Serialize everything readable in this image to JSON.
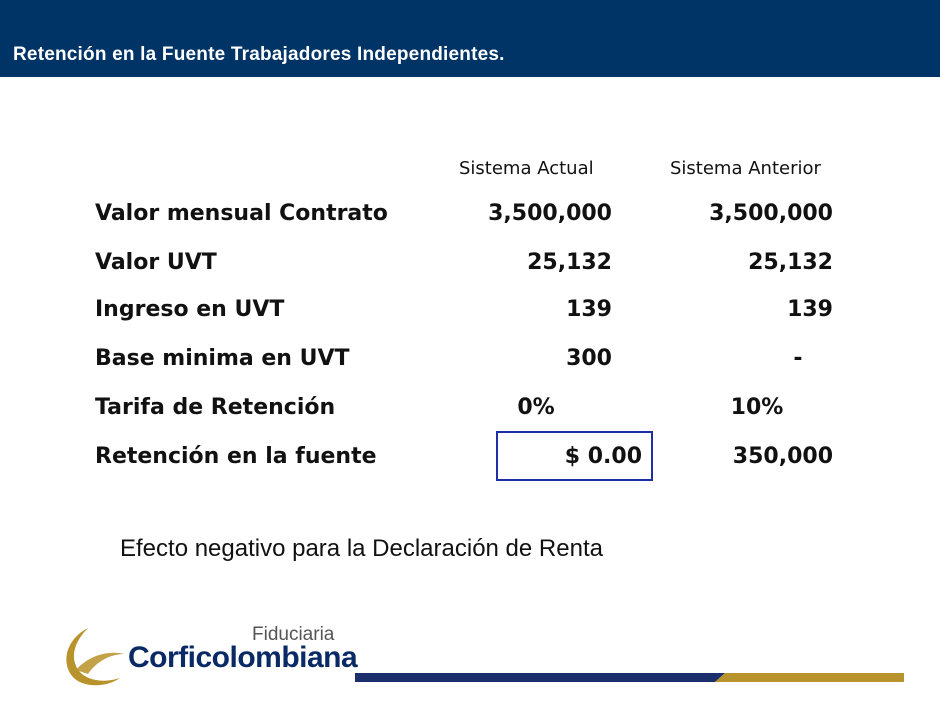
{
  "header": {
    "title": "Retención en la Fuente Trabajadores Independientes."
  },
  "columns": {
    "actual": "Sistema Actual",
    "anterior": "Sistema Anterior"
  },
  "rows": [
    {
      "label": "Valor mensual Contrato",
      "actual": "3,500,000",
      "anterior": "3,500,000"
    },
    {
      "label": "Valor UVT",
      "actual": "25,132",
      "anterior": "25,132"
    },
    {
      "label": "Ingreso en UVT",
      "actual": "139",
      "anterior": "139"
    },
    {
      "label": "Base minima en UVT",
      "actual": "300",
      "anterior": "-"
    },
    {
      "label": "Tarifa de Retención",
      "actual": "0%",
      "anterior": "10%"
    },
    {
      "label": "Retención en la fuente",
      "actual": "$ 0.00",
      "anterior": "350,000"
    }
  ],
  "note": "Efecto negativo para la Declaración de Renta",
  "logo": {
    "line1": "Fiduciaria",
    "line2": "Corficolombiana"
  },
  "colors": {
    "header": "#003366",
    "box": "#1f2fa8",
    "gold": "#b8922a",
    "navy": "#1a2f6b"
  }
}
